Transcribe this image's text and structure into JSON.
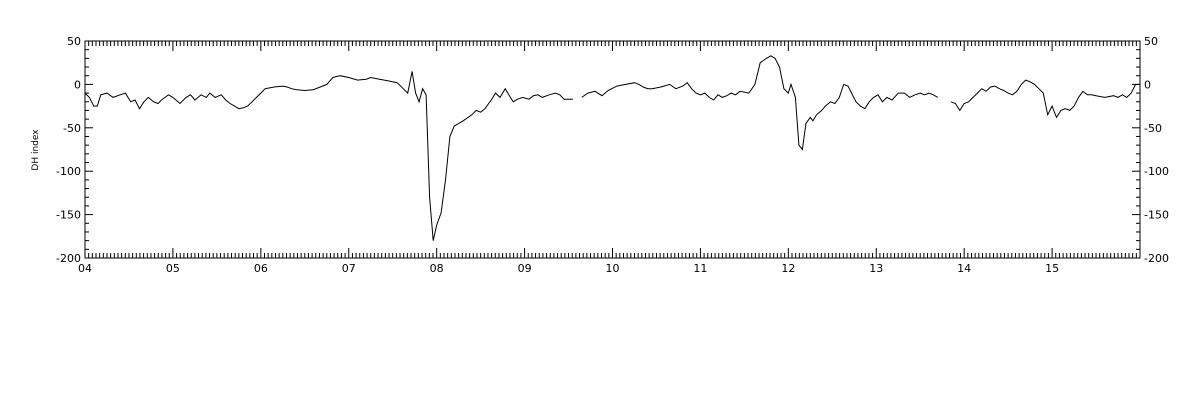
{
  "chart_data": {
    "type": "line",
    "title": "",
    "xlabel": "",
    "ylabel": "DH index",
    "ylim": [
      -200,
      50
    ],
    "grid": false,
    "x_domain_days": [
      4,
      16
    ],
    "x_ticks": [
      "04",
      "05",
      "06",
      "07",
      "08",
      "09",
      "10",
      "11",
      "12",
      "13",
      "14",
      "15"
    ],
    "y_ticks_left": [
      "50",
      "0",
      "-50",
      "-100",
      "-150",
      "-200"
    ],
    "y_ticks_right": [
      "50",
      "0",
      "-50",
      "-100",
      "-150",
      "-200"
    ],
    "y_tick_values": [
      50,
      0,
      -50,
      -100,
      -150,
      -200
    ],
    "series": [
      {
        "segments": [
          [
            [
              4.0,
              -10
            ],
            [
              4.05,
              -15
            ],
            [
              4.1,
              -25
            ],
            [
              4.14,
              -25
            ],
            [
              4.18,
              -12
            ],
            [
              4.25,
              -10
            ],
            [
              4.32,
              -15
            ],
            [
              4.4,
              -12
            ],
            [
              4.46,
              -10
            ],
            [
              4.52,
              -20
            ],
            [
              4.57,
              -18
            ],
            [
              4.62,
              -28
            ],
            [
              4.67,
              -20
            ],
            [
              4.72,
              -15
            ],
            [
              4.78,
              -20
            ],
            [
              4.83,
              -22
            ],
            [
              4.88,
              -17
            ],
            [
              4.95,
              -12
            ],
            [
              5.0,
              -15
            ],
            [
              5.08,
              -22
            ],
            [
              5.15,
              -15
            ],
            [
              5.2,
              -12
            ],
            [
              5.25,
              -18
            ],
            [
              5.32,
              -12
            ],
            [
              5.38,
              -15
            ],
            [
              5.42,
              -10
            ],
            [
              5.48,
              -15
            ],
            [
              5.55,
              -12
            ],
            [
              5.6,
              -18
            ],
            [
              5.65,
              -22
            ],
            [
              5.7,
              -25
            ],
            [
              5.75,
              -28
            ],
            [
              5.8,
              -27
            ],
            [
              5.85,
              -25
            ],
            [
              5.9,
              -20
            ],
            [
              5.95,
              -15
            ],
            [
              6.0,
              -10
            ],
            [
              6.05,
              -5
            ],
            [
              6.15,
              -3
            ],
            [
              6.25,
              -2
            ],
            [
              6.3,
              -3
            ],
            [
              6.35,
              -5
            ],
            [
              6.4,
              -6
            ],
            [
              6.5,
              -7
            ],
            [
              6.6,
              -6
            ],
            [
              6.65,
              -4
            ],
            [
              6.7,
              -2
            ],
            [
              6.75,
              0
            ],
            [
              6.82,
              8
            ],
            [
              6.9,
              10
            ],
            [
              7.0,
              8
            ],
            [
              7.1,
              5
            ],
            [
              7.2,
              6
            ],
            [
              7.25,
              8
            ],
            [
              7.35,
              6
            ],
            [
              7.45,
              4
            ],
            [
              7.55,
              2
            ],
            [
              7.62,
              -5
            ],
            [
              7.67,
              -10
            ],
            [
              7.72,
              15
            ],
            [
              7.76,
              -10
            ],
            [
              7.8,
              -20
            ],
            [
              7.84,
              -5
            ],
            [
              7.88,
              -12
            ],
            [
              7.92,
              -130
            ],
            [
              7.96,
              -180
            ],
            [
              8.0,
              -162
            ],
            [
              8.05,
              -148
            ],
            [
              8.1,
              -110
            ],
            [
              8.15,
              -60
            ],
            [
              8.2,
              -48
            ],
            [
              8.3,
              -42
            ],
            [
              8.4,
              -35
            ],
            [
              8.45,
              -30
            ],
            [
              8.5,
              -32
            ],
            [
              8.55,
              -28
            ],
            [
              8.62,
              -18
            ],
            [
              8.67,
              -10
            ],
            [
              8.72,
              -15
            ],
            [
              8.78,
              -5
            ],
            [
              8.82,
              -12
            ],
            [
              8.87,
              -20
            ],
            [
              8.92,
              -17
            ],
            [
              8.98,
              -15
            ],
            [
              9.05,
              -17
            ],
            [
              9.1,
              -13
            ],
            [
              9.15,
              -12
            ],
            [
              9.2,
              -15
            ],
            [
              9.28,
              -12
            ],
            [
              9.35,
              -10
            ],
            [
              9.4,
              -12
            ],
            [
              9.45,
              -17
            ],
            [
              9.5,
              -17
            ],
            [
              9.55,
              -17
            ]
          ],
          [
            [
              9.65,
              -15
            ],
            [
              9.72,
              -10
            ],
            [
              9.8,
              -8
            ],
            [
              9.88,
              -13
            ],
            [
              9.95,
              -7
            ],
            [
              10.05,
              -2
            ],
            [
              10.15,
              0
            ],
            [
              10.25,
              2
            ],
            [
              10.3,
              0
            ],
            [
              10.35,
              -3
            ],
            [
              10.4,
              -5
            ],
            [
              10.45,
              -5
            ],
            [
              10.55,
              -3
            ],
            [
              10.65,
              0
            ],
            [
              10.72,
              -5
            ],
            [
              10.8,
              -2
            ],
            [
              10.85,
              2
            ],
            [
              10.9,
              -5
            ],
            [
              10.95,
              -10
            ],
            [
              11.0,
              -12
            ],
            [
              11.05,
              -10
            ],
            [
              11.1,
              -15
            ],
            [
              11.15,
              -18
            ],
            [
              11.2,
              -12
            ],
            [
              11.25,
              -15
            ],
            [
              11.3,
              -13
            ],
            [
              11.35,
              -10
            ],
            [
              11.4,
              -12
            ],
            [
              11.45,
              -8
            ],
            [
              11.55,
              -10
            ],
            [
              11.62,
              0
            ],
            [
              11.68,
              25
            ],
            [
              11.75,
              30
            ],
            [
              11.8,
              33
            ],
            [
              11.85,
              30
            ],
            [
              11.9,
              20
            ],
            [
              11.95,
              -5
            ],
            [
              12.0,
              -10
            ],
            [
              12.03,
              0
            ],
            [
              12.08,
              -15
            ],
            [
              12.12,
              -70
            ],
            [
              12.16,
              -75
            ],
            [
              12.2,
              -45
            ],
            [
              12.25,
              -38
            ],
            [
              12.28,
              -42
            ],
            [
              12.32,
              -35
            ],
            [
              12.38,
              -30
            ],
            [
              12.42,
              -25
            ],
            [
              12.48,
              -20
            ],
            [
              12.53,
              -22
            ],
            [
              12.58,
              -15
            ],
            [
              12.63,
              0
            ],
            [
              12.68,
              -2
            ],
            [
              12.72,
              -10
            ],
            [
              12.77,
              -20
            ],
            [
              12.82,
              -25
            ],
            [
              12.87,
              -28
            ],
            [
              12.92,
              -20
            ],
            [
              12.97,
              -15
            ],
            [
              13.02,
              -12
            ],
            [
              13.07,
              -20
            ],
            [
              13.12,
              -15
            ],
            [
              13.18,
              -18
            ],
            [
              13.25,
              -10
            ],
            [
              13.32,
              -10
            ],
            [
              13.38,
              -15
            ],
            [
              13.44,
              -12
            ],
            [
              13.5,
              -10
            ],
            [
              13.55,
              -12
            ],
            [
              13.6,
              -10
            ],
            [
              13.65,
              -12
            ],
            [
              13.7,
              -15
            ]
          ],
          [
            [
              13.85,
              -20
            ],
            [
              13.9,
              -22
            ],
            [
              13.95,
              -30
            ],
            [
              14.0,
              -22
            ],
            [
              14.05,
              -20
            ],
            [
              14.1,
              -15
            ],
            [
              14.15,
              -10
            ],
            [
              14.2,
              -5
            ],
            [
              14.25,
              -8
            ],
            [
              14.3,
              -3
            ],
            [
              14.35,
              -2
            ],
            [
              14.4,
              -5
            ],
            [
              14.45,
              -7
            ],
            [
              14.5,
              -10
            ],
            [
              14.55,
              -12
            ],
            [
              14.6,
              -8
            ],
            [
              14.65,
              0
            ],
            [
              14.7,
              5
            ],
            [
              14.75,
              3
            ],
            [
              14.8,
              0
            ],
            [
              14.85,
              -5
            ],
            [
              14.9,
              -10
            ],
            [
              14.95,
              -35
            ],
            [
              15.0,
              -25
            ],
            [
              15.05,
              -38
            ],
            [
              15.1,
              -30
            ],
            [
              15.15,
              -28
            ],
            [
              15.2,
              -30
            ],
            [
              15.25,
              -25
            ],
            [
              15.3,
              -15
            ],
            [
              15.35,
              -8
            ],
            [
              15.4,
              -12
            ],
            [
              15.45,
              -12
            ],
            [
              15.5,
              -13
            ],
            [
              15.6,
              -15
            ],
            [
              15.7,
              -13
            ],
            [
              15.75,
              -15
            ],
            [
              15.8,
              -12
            ],
            [
              15.85,
              -15
            ],
            [
              15.9,
              -10
            ],
            [
              15.95,
              0
            ],
            [
              16.0,
              0
            ]
          ]
        ]
      }
    ]
  }
}
